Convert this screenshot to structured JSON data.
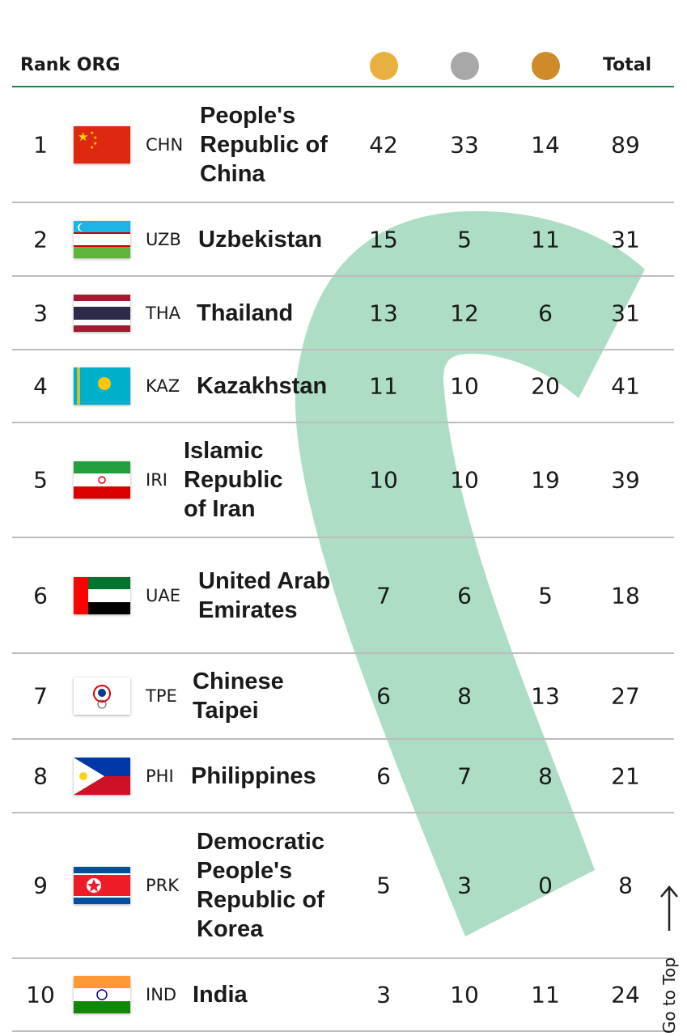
{
  "header": {
    "rank_org": "Rank ORG",
    "total": "Total",
    "gold_color": "#e8b040",
    "silver_color": "#a8a8a8",
    "bronze_color": "#cf8a2a"
  },
  "rows": [
    {
      "rank": "1",
      "code": "CHN",
      "name": "People's Republic of China",
      "gold": "42",
      "silver": "33",
      "bronze": "14",
      "total": "89"
    },
    {
      "rank": "2",
      "code": "UZB",
      "name": "Uzbekistan",
      "gold": "15",
      "silver": "5",
      "bronze": "11",
      "total": "31"
    },
    {
      "rank": "3",
      "code": "THA",
      "name": "Thailand",
      "gold": "13",
      "silver": "12",
      "bronze": "6",
      "total": "31"
    },
    {
      "rank": "4",
      "code": "KAZ",
      "name": "Kazakhstan",
      "gold": "11",
      "silver": "10",
      "bronze": "20",
      "total": "41"
    },
    {
      "rank": "5",
      "code": "IRI",
      "name": "Islamic Republic of Iran",
      "gold": "10",
      "silver": "10",
      "bronze": "19",
      "total": "39"
    },
    {
      "rank": "6",
      "code": "UAE",
      "name": "United Arab Emirates",
      "gold": "7",
      "silver": "6",
      "bronze": "5",
      "total": "18"
    },
    {
      "rank": "7",
      "code": "TPE",
      "name": "Chinese Taipei",
      "gold": "6",
      "silver": "8",
      "bronze": "13",
      "total": "27"
    },
    {
      "rank": "8",
      "code": "PHI",
      "name": "Philippines",
      "gold": "6",
      "silver": "7",
      "bronze": "8",
      "total": "21"
    },
    {
      "rank": "9",
      "code": "PRK",
      "name": "Democratic People's Republic of Korea",
      "gold": "5",
      "silver": "3",
      "bronze": "0",
      "total": "8"
    },
    {
      "rank": "10",
      "code": "IND",
      "name": "India",
      "gold": "3",
      "silver": "10",
      "bronze": "11",
      "total": "24"
    }
  ],
  "go_to_top": "Go to Top",
  "overlay_color": "#9fd8bb"
}
